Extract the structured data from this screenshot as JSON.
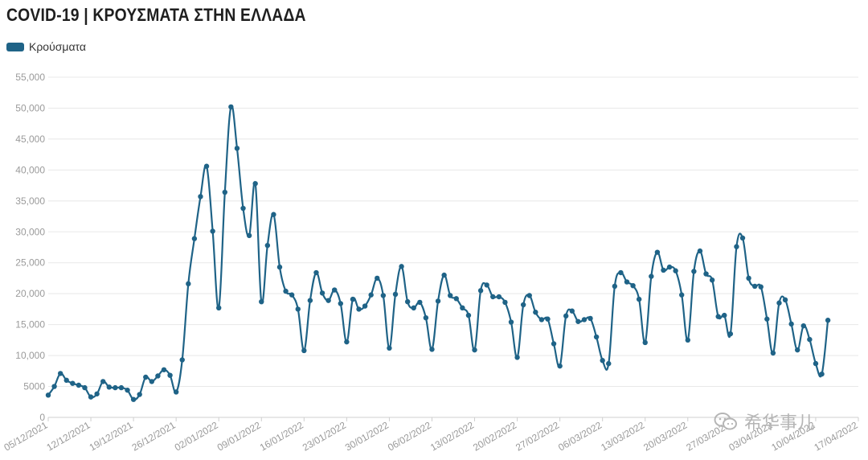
{
  "title": "COVID-19 | ΚΡΟΥΣΜΑΤΑ ΣΤΗΝ ΕΛΛΑΔΑ",
  "legend_label": "Κρούσματα",
  "colors": {
    "series": "#1f6387",
    "grid": "#e8e8e8",
    "ticks": "#9a9a9a"
  },
  "watermark_text": "希华事儿",
  "chart_data": {
    "type": "line",
    "title": "COVID-19 | ΚΡΟΥΣΜΑΤΑ ΣΤΗΝ ΕΛΛΑΔΑ",
    "xlabel": "",
    "ylabel": "",
    "ylim": [
      0,
      55000
    ],
    "y_ticks": [
      "0",
      "5000",
      "10,000",
      "15,000",
      "20,000",
      "25,000",
      "30,000",
      "35,000",
      "40,000",
      "45,000",
      "50,000",
      "55,000"
    ],
    "x_ticks": [
      "05/12/2021",
      "12/12/2021",
      "19/12/2021",
      "26/12/2021",
      "02/01/2022",
      "09/01/2022",
      "16/01/2022",
      "23/01/2022",
      "30/01/2022",
      "06/02/2022",
      "13/02/2022",
      "20/02/2022",
      "27/02/2022",
      "06/03/2022",
      "13/03/2022",
      "20/03/2022",
      "27/03/2022",
      "03/04/2022",
      "10/04/2022",
      "17/04/2022"
    ],
    "x_range": [
      "05/12/2021",
      "17/04/2022"
    ],
    "grid": true,
    "legend_position": "top-left",
    "series": [
      {
        "name": "Κρούσματα",
        "x_start": "05/12/2021",
        "values": [
          3600,
          5000,
          7100,
          6000,
          5500,
          5200,
          4800,
          3300,
          3800,
          5800,
          4900,
          4800,
          4800,
          4400,
          2900,
          3700,
          6500,
          5800,
          6700,
          7700,
          6800,
          4100,
          9300,
          21600,
          28900,
          35700,
          40600,
          30100,
          17700,
          36400,
          50200,
          43500,
          33800,
          29400,
          37800,
          18700,
          27800,
          32800,
          24300,
          20400,
          19800,
          17500,
          10800,
          18900,
          23400,
          20100,
          18900,
          20600,
          18400,
          12200,
          19100,
          17500,
          18000,
          19800,
          22500,
          19700,
          11200,
          19900,
          24400,
          18700,
          17700,
          18600,
          16100,
          11000,
          18800,
          23000,
          19700,
          19200,
          17700,
          16500,
          10900,
          20500,
          21400,
          19500,
          19500,
          18600,
          15400,
          9700,
          18200,
          19700,
          17000,
          15800,
          15900,
          11900,
          8300,
          16400,
          17200,
          15500,
          15800,
          16000,
          13000,
          9200,
          8700,
          21200,
          23400,
          21900,
          21300,
          19100,
          12100,
          22800,
          26700,
          23800,
          24300,
          23700,
          19800,
          12500,
          23600,
          26900,
          23200,
          22200,
          16300,
          16500,
          13500,
          27600,
          29000,
          22500,
          21200,
          21100,
          15900,
          10400,
          18500,
          19000,
          15100,
          10900,
          14800,
          12600,
          8700,
          7000,
          15700
        ]
      }
    ]
  }
}
